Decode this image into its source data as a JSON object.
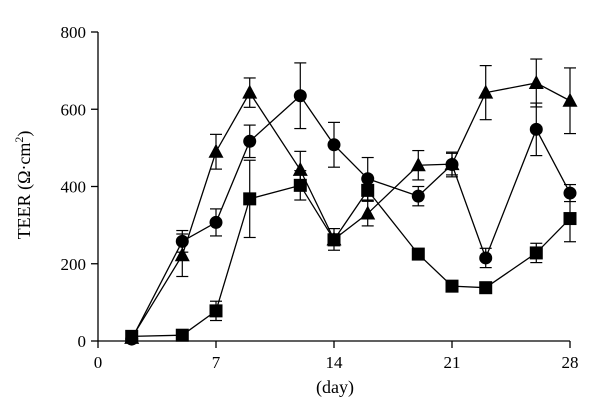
{
  "chart_data": {
    "type": "line",
    "xlabel": "(day)",
    "ylabel": "TEER (Ω·cm²)",
    "ylabel_parts": {
      "main": "TEER (Ω·cm",
      "sup": "2",
      "close": ")"
    },
    "xlim": [
      0,
      28
    ],
    "ylim": [
      0,
      800
    ],
    "x_ticks": [
      0,
      7,
      14,
      21,
      28
    ],
    "y_ticks": [
      0,
      200,
      400,
      600,
      800
    ],
    "grid": false,
    "legend": "none",
    "series": [
      {
        "marker": "circle",
        "color": "#000000",
        "points": [
          {
            "x": 2,
            "y": 5,
            "err": 0
          },
          {
            "x": 5,
            "y": 258,
            "err": 28
          },
          {
            "x": 7,
            "y": 307,
            "err": 35
          },
          {
            "x": 9,
            "y": 517,
            "err": 42
          },
          {
            "x": 12,
            "y": 635,
            "err": 85
          },
          {
            "x": 14,
            "y": 508,
            "err": 58
          },
          {
            "x": 16,
            "y": 420,
            "err": 55
          },
          {
            "x": 19,
            "y": 375,
            "err": 25
          },
          {
            "x": 21,
            "y": 457,
            "err": 32
          },
          {
            "x": 23,
            "y": 215,
            "err": 25
          },
          {
            "x": 26,
            "y": 548,
            "err": 68
          },
          {
            "x": 28,
            "y": 383,
            "err": 22
          }
        ]
      },
      {
        "marker": "triangle",
        "color": "#000000",
        "points": [
          {
            "x": 2,
            "y": 8,
            "err": 0
          },
          {
            "x": 5,
            "y": 222,
            "err": 55
          },
          {
            "x": 7,
            "y": 490,
            "err": 45
          },
          {
            "x": 9,
            "y": 643,
            "err": 38
          },
          {
            "x": 12,
            "y": 443,
            "err": 48
          },
          {
            "x": 14,
            "y": 263,
            "err": 28
          },
          {
            "x": 16,
            "y": 330,
            "err": 32
          },
          {
            "x": 19,
            "y": 455,
            "err": 38
          },
          {
            "x": 21,
            "y": 458,
            "err": 28
          },
          {
            "x": 23,
            "y": 643,
            "err": 70
          },
          {
            "x": 26,
            "y": 668,
            "err": 62
          },
          {
            "x": 28,
            "y": 622,
            "err": 85
          }
        ]
      },
      {
        "marker": "square",
        "color": "#000000",
        "points": [
          {
            "x": 2,
            "y": 12,
            "err": 0
          },
          {
            "x": 5,
            "y": 15,
            "err": 0
          },
          {
            "x": 7,
            "y": 78,
            "err": 25
          },
          {
            "x": 9,
            "y": 368,
            "err": 100
          },
          {
            "x": 12,
            "y": 403,
            "err": 38
          },
          {
            "x": 14,
            "y": 262,
            "err": 15
          },
          {
            "x": 16,
            "y": 390,
            "err": 28
          },
          {
            "x": 19,
            "y": 225,
            "err": 8
          },
          {
            "x": 21,
            "y": 142,
            "err": 8
          },
          {
            "x": 23,
            "y": 138,
            "err": 8
          },
          {
            "x": 26,
            "y": 228,
            "err": 25
          },
          {
            "x": 28,
            "y": 317,
            "err": 60
          }
        ]
      }
    ]
  }
}
